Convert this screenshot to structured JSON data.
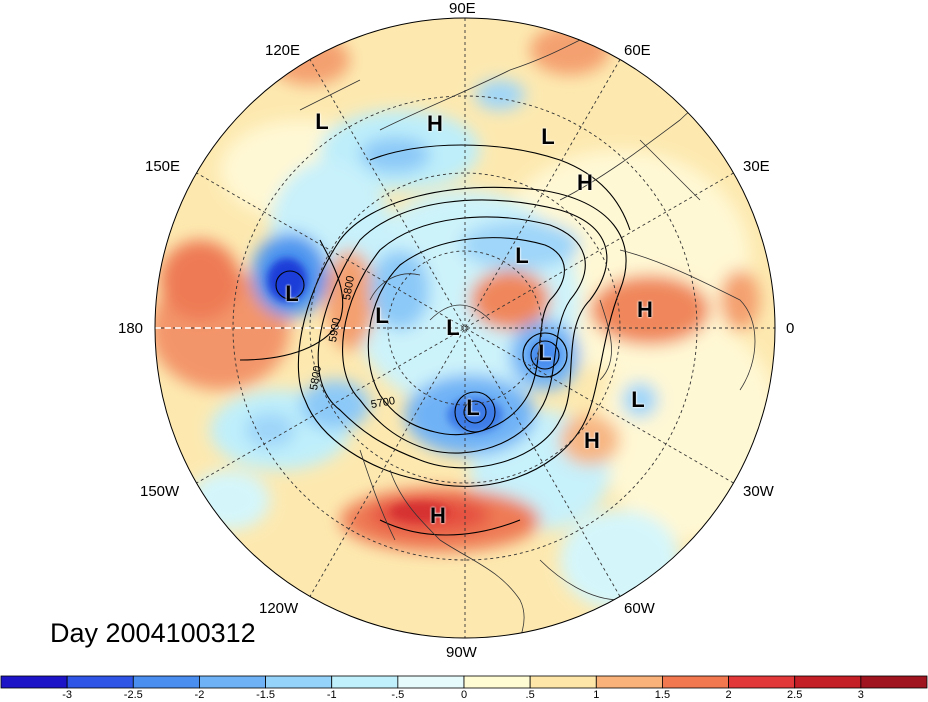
{
  "title": "Day 2004100312",
  "longitude_labels": {
    "lon_90e": "90E",
    "lon_120e": "120E",
    "lon_60e": "60E",
    "lon_150e": "150E",
    "lon_30e": "30E",
    "lon_180": "180",
    "lon_0": "0",
    "lon_150w": "150W",
    "lon_30w": "30W",
    "lon_120w": "120W",
    "lon_60w": "60W",
    "lon_90w": "90W"
  },
  "pressure_centers": [
    {
      "type": "L"
    },
    {
      "type": "H"
    },
    {
      "type": "L"
    },
    {
      "type": "H"
    },
    {
      "type": "L"
    },
    {
      "type": "L"
    },
    {
      "type": "L"
    },
    {
      "type": "L"
    },
    {
      "type": "H"
    },
    {
      "type": "L"
    },
    {
      "type": "L"
    },
    {
      "type": "L"
    },
    {
      "type": "H"
    },
    {
      "type": "H"
    }
  ],
  "contour_labels": [
    "5800",
    "5900",
    "5800",
    "5700"
  ],
  "colorbar": {
    "ticks": [
      "-3",
      "-2.5",
      "-2",
      "-1.5",
      "-1",
      "-.5",
      "0",
      ".5",
      "1",
      "1.5",
      "2",
      "2.5",
      "3"
    ],
    "colors": [
      "#1d14c8",
      "#2e55e6",
      "#4a8ef0",
      "#6fb2f6",
      "#95d3fa",
      "#bff0fb",
      "#e6fbfb",
      "#fffbd2",
      "#fde6a8",
      "#f8b27a",
      "#f1784f",
      "#e2383a",
      "#c41e26",
      "#a01420"
    ]
  }
}
